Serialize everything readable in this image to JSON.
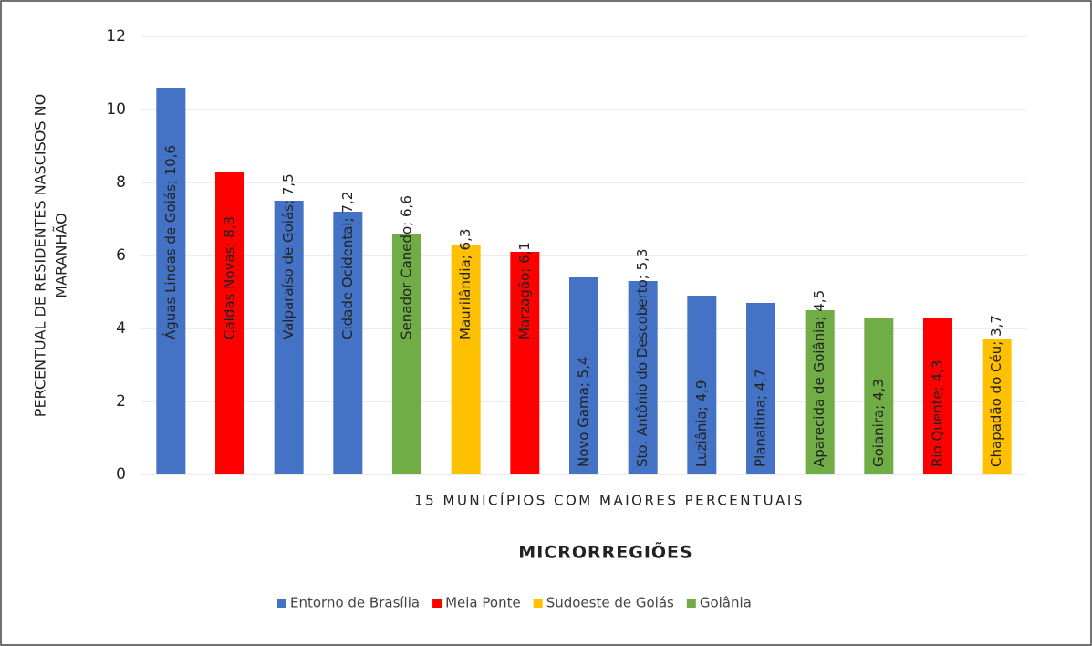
{
  "chart_data": {
    "type": "bar",
    "y_label_lines": [
      "PERCENTUAL DE RESIDENTES NASCISOS NO",
      "MARANHÃO"
    ],
    "x_label": "15 MUNICÍPIOS COM MAIORES PERCENTUAIS",
    "legend_title": "MICRORREGIÕES",
    "ylim": [
      0,
      12
    ],
    "yticks": [
      0,
      2,
      4,
      6,
      8,
      10,
      12
    ],
    "grid": true,
    "legend": "bottom",
    "series": [
      {
        "name": "Entorno de Brasília",
        "color": "#4472c4",
        "values": [
          10.6,
          null,
          7.5,
          7.2,
          null,
          null,
          null,
          5.4,
          5.3,
          4.9,
          4.7,
          null,
          null,
          null,
          null
        ],
        "value_labels": [
          "Águas Lindas de Goiás; 10,6",
          null,
          "Valparaíso de Goiás; 7,5",
          "Cidade Ocidental; 7,2",
          null,
          null,
          null,
          "Novo Gama; 5,4",
          "Sto. Antônio do Descoberto; 5,3",
          "Luziânia; 4,9",
          "Planaltina; 4,7",
          null,
          null,
          null,
          null
        ]
      },
      {
        "name": "Meia Ponte",
        "color": "#ff0000",
        "values": [
          null,
          8.3,
          null,
          null,
          null,
          null,
          6.1,
          null,
          null,
          null,
          null,
          null,
          null,
          4.3,
          null
        ],
        "value_labels": [
          null,
          "Caldas Novas; 8,3",
          null,
          null,
          null,
          null,
          "Marzagão; 6,1",
          null,
          null,
          null,
          null,
          null,
          null,
          "Rio Quente; 4,3",
          null
        ]
      },
      {
        "name": "Sudoeste de Goiás",
        "color": "#ffc000",
        "values": [
          null,
          null,
          null,
          null,
          null,
          6.3,
          null,
          null,
          null,
          null,
          null,
          null,
          null,
          null,
          3.7
        ],
        "value_labels": [
          null,
          null,
          null,
          null,
          null,
          "Maurilândia; 6,3",
          null,
          null,
          null,
          null,
          null,
          null,
          null,
          null,
          "Chapadão do Céu; 3,7"
        ]
      },
      {
        "name": "Goiânia",
        "color": "#70ad47",
        "values": [
          null,
          null,
          null,
          null,
          6.6,
          null,
          null,
          null,
          null,
          null,
          null,
          4.5,
          4.3,
          null,
          null
        ],
        "value_labels": [
          null,
          null,
          null,
          null,
          "Senador Canedo; 6,6",
          null,
          null,
          null,
          null,
          null,
          null,
          "Aparecida de Goiânia; 4,5",
          "Goianira; 4,3",
          null,
          null
        ]
      }
    ]
  }
}
